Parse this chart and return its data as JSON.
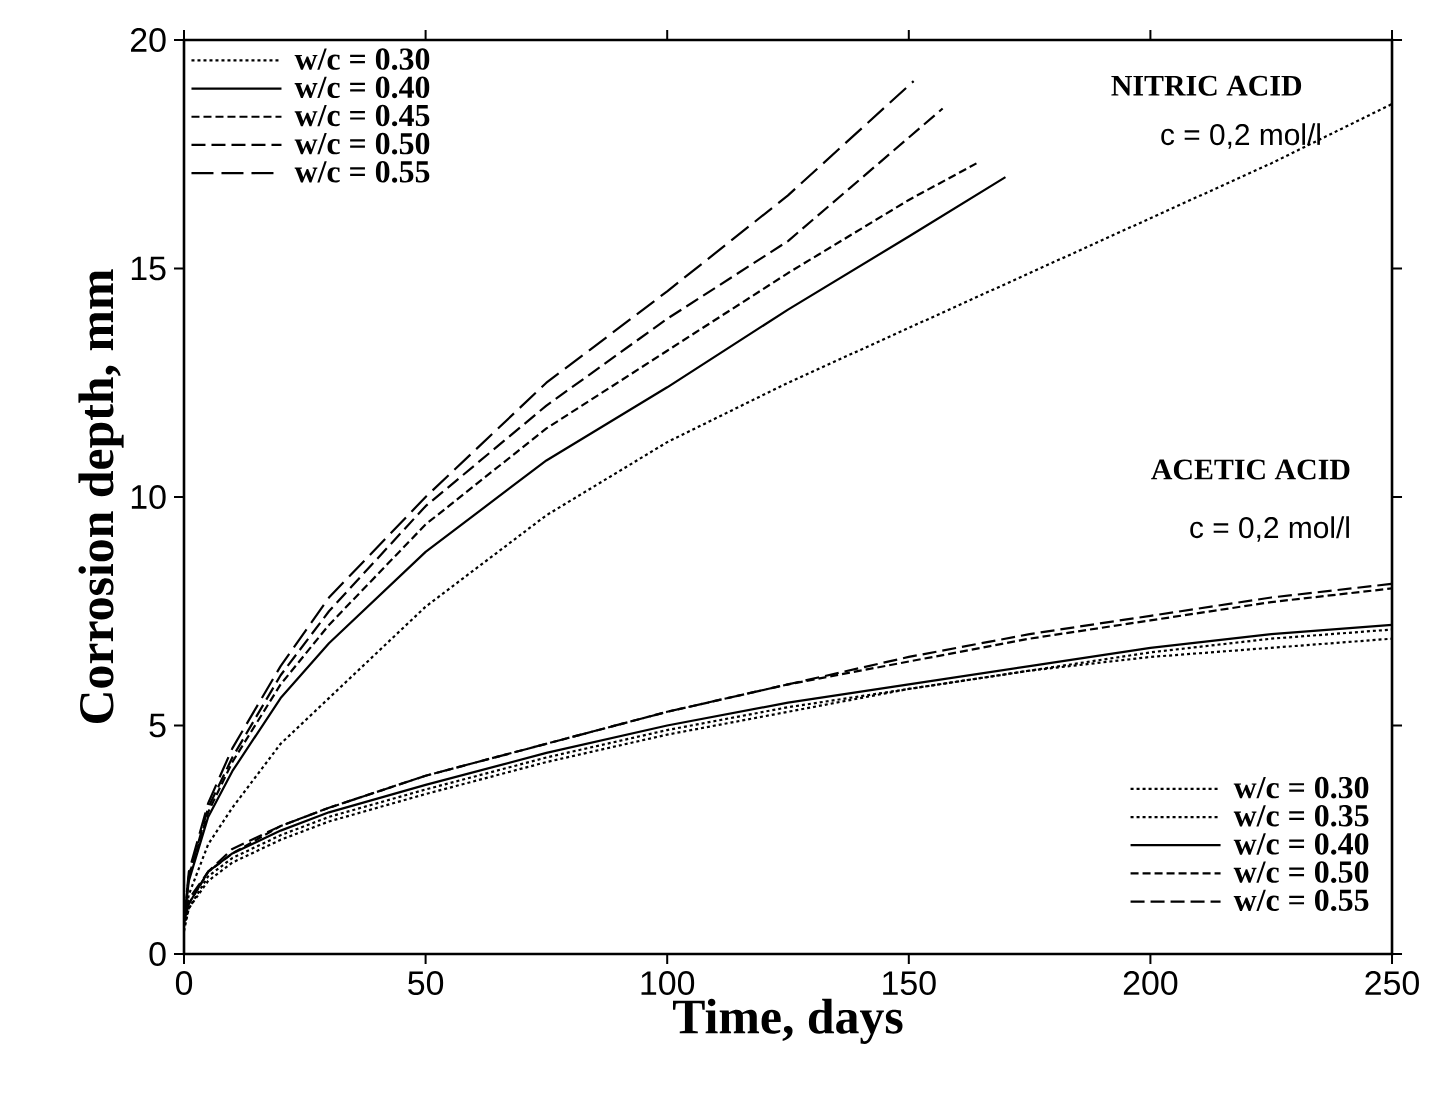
{
  "chart_data": {
    "type": "line",
    "xlabel": "Time, days",
    "ylabel": "Corrosion depth, mm",
    "xlim": [
      0,
      250
    ],
    "ylim": [
      0,
      20
    ],
    "xticks": [
      0,
      50,
      100,
      150,
      200,
      250
    ],
    "yticks": [
      0,
      5,
      10,
      15,
      20
    ],
    "grid": false,
    "legend": "top left",
    "annotations": [
      "NITRIC ACID",
      "c = 0,2 mol/l",
      "ACETIC ACID",
      "c = 0,2 mol/l"
    ],
    "series": [
      {
        "name": "w/c = 0.30",
        "color": "#000000",
        "line_style": "dotted",
        "x": [
          0,
          1,
          5,
          10,
          20,
          30,
          50,
          75,
          100,
          125,
          150,
          175,
          200,
          225,
          250
        ],
        "values": [
          0.7,
          1.3,
          2.4,
          3.2,
          4.6,
          5.6,
          7.6,
          9.6,
          11.2,
          12.5,
          13.7,
          14.9,
          16.1,
          17.3,
          18.6
        ]
      },
      {
        "name": "w/c = 0.40",
        "color": "#000000",
        "line_style": "solid",
        "x": [
          0,
          1,
          5,
          10,
          20,
          30,
          50,
          75,
          100,
          125,
          150,
          170
        ],
        "values": [
          0.7,
          1.6,
          3.0,
          4.0,
          5.6,
          6.8,
          8.8,
          10.8,
          12.4,
          14.1,
          15.7,
          17.0
        ]
      },
      {
        "name": "w/c = 0.45",
        "color": "#000000",
        "line_style": "dashed",
        "x": [
          0,
          1,
          5,
          10,
          20,
          30,
          50,
          75,
          100,
          125,
          150,
          164
        ],
        "values": [
          0.7,
          1.7,
          3.1,
          4.2,
          5.9,
          7.2,
          9.4,
          11.5,
          13.2,
          14.9,
          16.5,
          17.3
        ]
      },
      {
        "name": "w/c = 0.50",
        "color": "#000000",
        "line_style": "dashed",
        "x": [
          0,
          1,
          5,
          10,
          20,
          30,
          50,
          75,
          100,
          125,
          157
        ],
        "values": [
          0.7,
          1.7,
          3.2,
          4.3,
          6.1,
          7.5,
          9.8,
          12.0,
          13.9,
          15.6,
          18.5
        ]
      },
      {
        "name": "w/c = 0.55",
        "color": "#000000",
        "line_style": "dashed",
        "x": [
          0,
          1,
          5,
          10,
          20,
          30,
          50,
          75,
          100,
          125,
          151
        ],
        "values": [
          0.7,
          1.8,
          3.3,
          4.5,
          6.3,
          7.8,
          10.0,
          12.5,
          14.5,
          16.6,
          19.1
        ]
      },
      {
        "name": "w/c = 0.30",
        "color": "#000000",
        "line_style": "dotted",
        "x": [
          0,
          1,
          5,
          10,
          20,
          30,
          50,
          75,
          100,
          125,
          150,
          175,
          200,
          225,
          250
        ],
        "values": [
          0.5,
          1.0,
          1.6,
          2.0,
          2.5,
          2.9,
          3.5,
          4.2,
          4.8,
          5.3,
          5.8,
          6.2,
          6.5,
          6.7,
          6.9
        ]
      },
      {
        "name": "w/c = 0.35",
        "color": "#000000",
        "line_style": "dotted",
        "x": [
          0,
          1,
          5,
          10,
          20,
          30,
          50,
          75,
          100,
          125,
          150,
          175,
          200,
          225,
          250
        ],
        "values": [
          0.6,
          1.0,
          1.7,
          2.1,
          2.6,
          3.0,
          3.6,
          4.3,
          4.9,
          5.4,
          5.8,
          6.2,
          6.6,
          6.9,
          7.1
        ]
      },
      {
        "name": "w/c = 0.40",
        "color": "#000000",
        "line_style": "solid",
        "x": [
          0,
          1,
          5,
          10,
          20,
          30,
          50,
          75,
          100,
          125,
          150,
          175,
          200,
          225,
          250
        ],
        "values": [
          0.7,
          1.1,
          1.8,
          2.2,
          2.7,
          3.1,
          3.7,
          4.4,
          5.0,
          5.5,
          5.9,
          6.3,
          6.7,
          7.0,
          7.2
        ]
      },
      {
        "name": "w/c = 0.50",
        "color": "#000000",
        "line_style": "dashed",
        "x": [
          0,
          1,
          5,
          10,
          20,
          30,
          50,
          75,
          100,
          125,
          150,
          175,
          200,
          225,
          250
        ],
        "values": [
          0.8,
          1.1,
          1.8,
          2.2,
          2.8,
          3.2,
          3.9,
          4.6,
          5.3,
          5.9,
          6.4,
          6.9,
          7.3,
          7.7,
          8.0
        ]
      },
      {
        "name": "w/c = 0.55",
        "color": "#000000",
        "line_style": "dashed",
        "x": [
          0,
          1,
          5,
          10,
          20,
          30,
          50,
          75,
          100,
          125,
          150,
          175,
          200,
          225,
          250
        ],
        "values": [
          0.9,
          1.2,
          1.8,
          2.3,
          2.8,
          3.2,
          3.9,
          4.6,
          5.3,
          5.9,
          6.5,
          7.0,
          7.4,
          7.8,
          8.1
        ]
      }
    ]
  }
}
